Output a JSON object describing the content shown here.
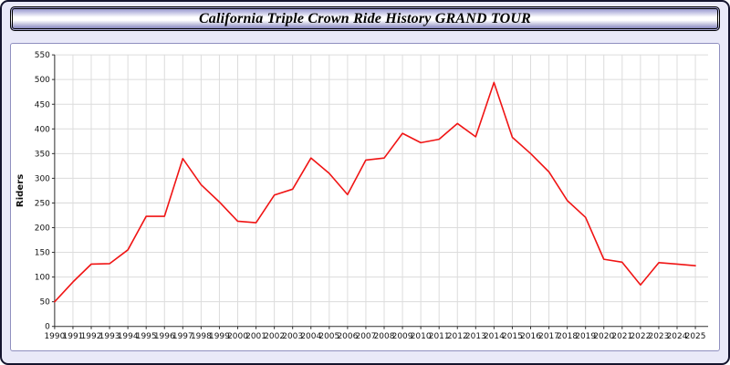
{
  "header": {
    "title": "California Triple Crown Ride History GRAND TOUR"
  },
  "colors": {
    "page_bg": "#e9e9f8",
    "panel_bg": "#ffffff",
    "panel_border": "#8f8fbf",
    "header_top": "#9a9ad0",
    "header_mid": "#ffffff",
    "header_bottom": "#8888c0",
    "line": "#f01414",
    "grid": "#dcdcdc",
    "axis": "#303030",
    "text": "#111111"
  },
  "chart_data": {
    "type": "line",
    "title": "California Triple Crown Ride History GRAND TOUR",
    "xlabel": "",
    "ylabel": "Riders",
    "x": [
      1990,
      1991,
      1992,
      1993,
      1994,
      1995,
      1996,
      1997,
      1998,
      1999,
      2000,
      2001,
      2002,
      2003,
      2004,
      2005,
      2006,
      2007,
      2008,
      2009,
      2010,
      2011,
      2012,
      2013,
      2014,
      2015,
      2016,
      2017,
      2018,
      2019,
      2020,
      2021,
      2022,
      2023,
      2024,
      2025
    ],
    "values": [
      50,
      90,
      126,
      127,
      155,
      223,
      223,
      340,
      287,
      252,
      213,
      210,
      266,
      278,
      341,
      310,
      267,
      337,
      341,
      391,
      372,
      379,
      411,
      384,
      494,
      383,
      350,
      313,
      255,
      221,
      136,
      130,
      84,
      129,
      126,
      123
    ],
    "ylim": [
      0,
      550
    ],
    "ytick_step": 50,
    "grid": true,
    "legend_position": "none",
    "line_color": "#f01414",
    "series_name": "Riders"
  }
}
